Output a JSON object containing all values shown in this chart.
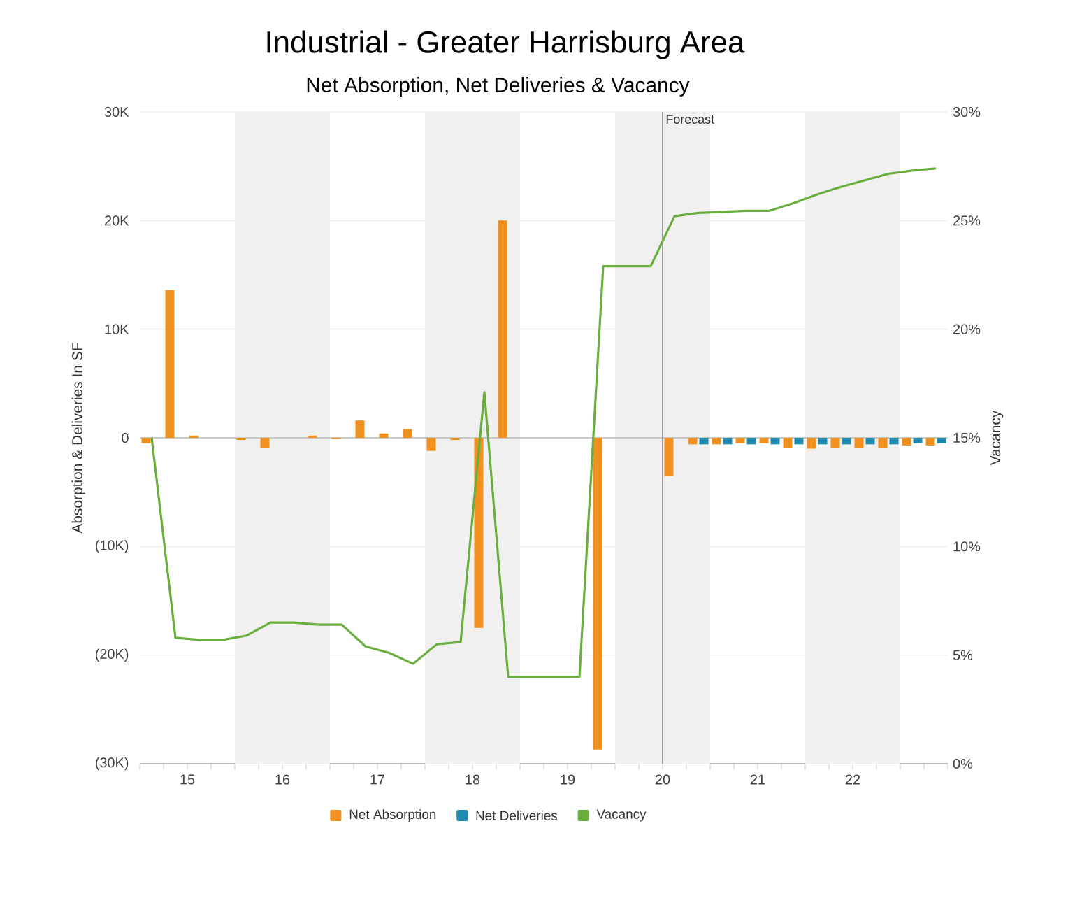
{
  "chart_data": {
    "type": "bar",
    "title": "Industrial - Greater Harrisburg Area",
    "subtitle": "Net Absorption, Net Deliveries & Vacancy",
    "ylabel": "Absorption & Deliveries In SF",
    "y2label": "Vacancy",
    "x": [
      15.125,
      15.375,
      15.625,
      15.875,
      16.125,
      16.375,
      16.625,
      16.875,
      17.125,
      17.375,
      17.625,
      17.875,
      18.125,
      18.375,
      18.625,
      18.875,
      19.125,
      19.375,
      19.625,
      19.875,
      20.125,
      20.375,
      20.625,
      20.875,
      21.125,
      21.375,
      21.625,
      21.875,
      22.125,
      22.375,
      22.625,
      22.875,
      23.125,
      23.375
    ],
    "xlim": [
      15,
      23.5
    ],
    "xticks": [
      {
        "value": 15,
        "label": null
      },
      {
        "value": 15.25,
        "label": null
      },
      {
        "value": 15.5,
        "label": "15"
      },
      {
        "value": 15.75,
        "label": null
      },
      {
        "value": 16,
        "label": null
      },
      {
        "value": 16.25,
        "label": null
      },
      {
        "value": 16.5,
        "label": "16"
      },
      {
        "value": 16.75,
        "label": null
      },
      {
        "value": 17,
        "label": null
      },
      {
        "value": 17.25,
        "label": null
      },
      {
        "value": 17.5,
        "label": "17"
      },
      {
        "value": 17.75,
        "label": null
      },
      {
        "value": 18,
        "label": null
      },
      {
        "value": 18.25,
        "label": null
      },
      {
        "value": 18.5,
        "label": "18"
      },
      {
        "value": 18.75,
        "label": null
      },
      {
        "value": 19,
        "label": null
      },
      {
        "value": 19.25,
        "label": null
      },
      {
        "value": 19.5,
        "label": "19"
      },
      {
        "value": 19.75,
        "label": null
      },
      {
        "value": 20,
        "label": null
      },
      {
        "value": 20.25,
        "label": null
      },
      {
        "value": 20.5,
        "label": "20"
      },
      {
        "value": 20.75,
        "label": null
      },
      {
        "value": 21,
        "label": null
      },
      {
        "value": 21.25,
        "label": null
      },
      {
        "value": 21.5,
        "label": "21"
      },
      {
        "value": 21.75,
        "label": null
      },
      {
        "value": 22,
        "label": null
      },
      {
        "value": 22.25,
        "label": null
      },
      {
        "value": 22.5,
        "label": "22"
      },
      {
        "value": 22.75,
        "label": null
      },
      {
        "value": 23,
        "label": null
      },
      {
        "value": 23.25,
        "label": null
      },
      {
        "value": 23.5,
        "label": null
      }
    ],
    "ylim": [
      -30000,
      30000
    ],
    "yticks": [
      {
        "value": -30000,
        "label": "(30K)"
      },
      {
        "value": -20000,
        "label": "(20K)"
      },
      {
        "value": -10000,
        "label": "(10K)"
      },
      0,
      {
        "value": 10000,
        "label": "10K"
      },
      {
        "value": 20000,
        "label": "20K"
      },
      {
        "value": 30000,
        "label": "30K"
      }
    ],
    "y2lim": [
      0,
      30
    ],
    "y2ticks": [
      {
        "value": 0,
        "label": "0%"
      },
      {
        "value": 5,
        "label": "5%"
      },
      {
        "value": 10,
        "label": "10%"
      },
      {
        "value": 15,
        "label": "15%"
      },
      {
        "value": 20,
        "label": "20%"
      },
      {
        "value": 25,
        "label": "25%"
      },
      {
        "value": 30,
        "label": "30%"
      }
    ],
    "series": [
      {
        "name": "Net Absorption",
        "color": "#f0901e",
        "values": [
          -500,
          13600,
          200,
          null,
          -200,
          -900,
          null,
          200,
          -100,
          1600,
          400,
          800,
          -1200,
          -200,
          -17500,
          20000,
          null,
          null,
          null,
          -28700,
          null,
          null,
          -3500,
          -600,
          -600,
          -500,
          -500,
          -900,
          -1000,
          -900,
          -900,
          -900,
          -700,
          -700
        ]
      },
      {
        "name": "Net Deliveries",
        "color": "#1f8bb0",
        "values": [
          null,
          null,
          null,
          null,
          null,
          null,
          null,
          null,
          null,
          null,
          null,
          null,
          null,
          null,
          null,
          null,
          null,
          null,
          null,
          null,
          null,
          null,
          null,
          -600,
          -600,
          -600,
          -600,
          -600,
          -600,
          -600,
          -600,
          -600,
          -500,
          -500
        ]
      },
      {
        "name": "Vacancy",
        "type": "line",
        "axis": "y2",
        "color": "#6aaf3d",
        "marker": "none",
        "values": [
          15.0,
          5.8,
          5.7,
          5.7,
          5.9,
          6.5,
          6.5,
          6.4,
          6.4,
          5.4,
          5.1,
          4.6,
          5.5,
          5.6,
          17.1,
          4.0,
          4.0,
          4.0,
          4.0,
          22.9,
          22.9,
          22.9,
          25.2,
          25.35,
          25.4,
          25.45,
          25.45,
          25.8,
          26.2,
          26.55,
          26.85,
          27.15,
          27.3,
          27.4
        ]
      }
    ],
    "ref_lines": [
      {
        "axis": "x",
        "value": 20.5,
        "label": "Forecast",
        "color": "#888888"
      }
    ],
    "bands": [
      {
        "axis": "x",
        "from": 16,
        "to": 17,
        "color": "#f0f0f0"
      },
      {
        "axis": "x",
        "from": 18,
        "to": 19,
        "color": "#f0f0f0"
      },
      {
        "axis": "x",
        "from": 20,
        "to": 21,
        "color": "#f0f0f0"
      },
      {
        "axis": "x",
        "from": 22,
        "to": 23,
        "color": "#f0f0f0"
      }
    ],
    "grid": "y",
    "legend": "bottom"
  }
}
